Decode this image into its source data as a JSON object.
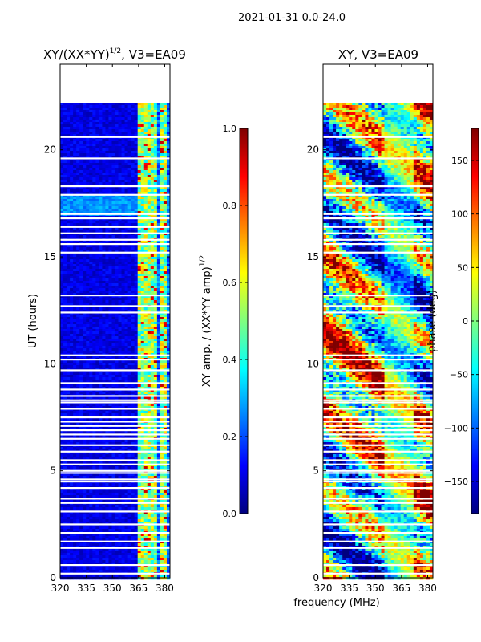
{
  "suptitle": "2021-01-31 0.0-24.0",
  "colors": {
    "jet": [
      "#00007f",
      "#0000ff",
      "#007fff",
      "#00ffff",
      "#7fff7f",
      "#ffff00",
      "#ff7f00",
      "#ff0000",
      "#7f0000"
    ],
    "background": "#ffffff",
    "axis": "#000000"
  },
  "chart_data": [
    {
      "type": "heatmap",
      "title": "XY/(XX*YY)^1/2, V3=EA09",
      "title_main": "XY/(XX*YY)",
      "title_exp": "1/2",
      "title_rest": ", V3=EA09",
      "xlabel": "",
      "ylabel": "UT (hours)",
      "xlim": [
        320,
        383
      ],
      "ylim": [
        0,
        24
      ],
      "x_ticks": [
        320,
        335,
        350,
        365,
        380
      ],
      "y_ticks": [
        0,
        5,
        10,
        15,
        20
      ],
      "data_extent_hours": [
        0,
        22.2
      ],
      "bright_channels_mhz": [
        365,
        367,
        370,
        372,
        375,
        378,
        380
      ],
      "colorbar": {
        "label": "XY amp. / (XX*YY amp)^1/2",
        "label_main": "XY amp. / (XX*YY amp)",
        "label_exp": "1/2",
        "range": [
          0.0,
          1.0
        ],
        "ticks": [
          0.0,
          0.2,
          0.4,
          0.6,
          0.8,
          1.0
        ],
        "tick_labels": [
          "0.0",
          "0.2",
          "0.4",
          "0.6",
          "0.8",
          "1.0"
        ]
      }
    },
    {
      "type": "heatmap",
      "title": "XY, V3=EA09",
      "xlabel": "frequency (MHz)",
      "ylabel": "",
      "xlim": [
        320,
        383
      ],
      "ylim": [
        0,
        24
      ],
      "x_ticks": [
        320,
        335,
        350,
        365,
        380
      ],
      "y_ticks": [
        0,
        5,
        10,
        15,
        20
      ],
      "data_extent_hours": [
        0,
        22.2
      ],
      "colorbar": {
        "label": "phase (deg)",
        "range": [
          -180,
          180
        ],
        "ticks": [
          -150,
          -100,
          -50,
          0,
          50,
          100,
          150
        ],
        "tick_labels": [
          "−150",
          "−100",
          "−50",
          "0",
          "50",
          "100",
          "150"
        ]
      }
    }
  ],
  "flagged_rows_hours": [
    0.2,
    0.6,
    1.4,
    1.7,
    2.1,
    2.5,
    3.1,
    3.5,
    3.7,
    4.2,
    4.5,
    4.6,
    4.9,
    5.0,
    5.3,
    5.5,
    5.9,
    6.2,
    6.5,
    6.7,
    6.9,
    7.1,
    7.3,
    7.5,
    7.9,
    8.2,
    8.3,
    8.5,
    8.8,
    9.1,
    9.7,
    10.2,
    10.4,
    12.4,
    12.7,
    13.2,
    15.2,
    15.6,
    15.8,
    16.1,
    16.4,
    16.8,
    17.0,
    17.9,
    18.3,
    19.6,
    20.6
  ]
}
